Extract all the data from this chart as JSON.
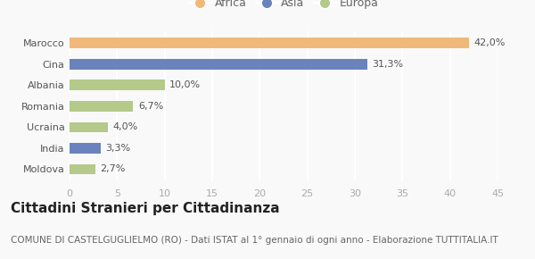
{
  "categories": [
    "Moldova",
    "India",
    "Ucraina",
    "Romania",
    "Albania",
    "Cina",
    "Marocco"
  ],
  "values": [
    2.7,
    3.3,
    4.0,
    6.7,
    10.0,
    31.3,
    42.0
  ],
  "labels": [
    "2,7%",
    "3,3%",
    "4,0%",
    "6,7%",
    "10,0%",
    "31,3%",
    "42,0%"
  ],
  "colors": [
    "#b5c98a",
    "#6b83bc",
    "#b5c98a",
    "#b5c98a",
    "#b5c98a",
    "#6b83bc",
    "#f0b97a"
  ],
  "legend_labels": [
    "Africa",
    "Asia",
    "Europa"
  ],
  "legend_colors": [
    "#f0b97a",
    "#6b83bc",
    "#b5c98a"
  ],
  "xlim": [
    0,
    45
  ],
  "xticks": [
    0,
    5,
    10,
    15,
    20,
    25,
    30,
    35,
    40,
    45
  ],
  "title": "Cittadini Stranieri per Cittadinanza",
  "subtitle": "COMUNE DI CASTELGUGLIELMO (RO) - Dati ISTAT al 1° gennaio di ogni anno - Elaborazione TUTTITALIA.IT",
  "bg_color": "#f9f9f9",
  "chart_bg_color": "#f9f9f9",
  "grid_color": "#ffffff",
  "bar_height": 0.5,
  "title_fontsize": 11,
  "subtitle_fontsize": 7.5,
  "label_fontsize": 8,
  "tick_fontsize": 8,
  "legend_fontsize": 9
}
